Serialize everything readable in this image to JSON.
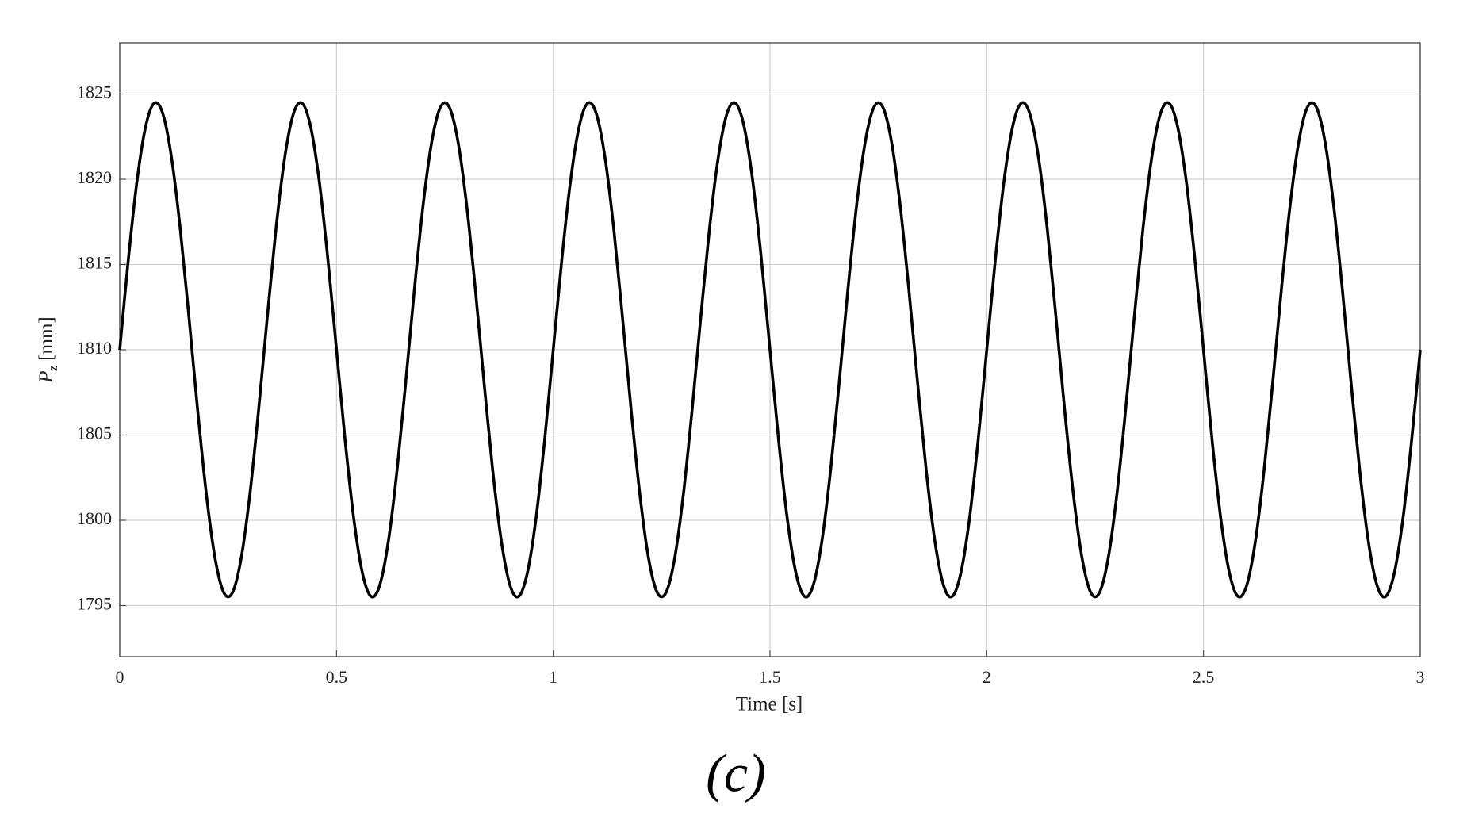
{
  "chart_data": {
    "type": "line",
    "x_label": "Time [s]",
    "y_label": {
      "symbol": "P",
      "subscript": "z",
      "unit": "[mm]"
    },
    "caption": "(c)",
    "xlim": [
      0,
      3
    ],
    "xticks": [
      0,
      0.5,
      1,
      1.5,
      2,
      2.5,
      3
    ],
    "ylim": [
      1792,
      1828
    ],
    "yticks": [
      1795,
      1800,
      1805,
      1810,
      1815,
      1820,
      1825
    ],
    "grid": true,
    "x": [
      0,
      0.02,
      0.04,
      0.06,
      0.08,
      0.1,
      0.12,
      0.14,
      0.16,
      0.18,
      0.2,
      0.22,
      0.24,
      0.26,
      0.28,
      0.3,
      0.32,
      0.34,
      0.36,
      0.38,
      0.4,
      0.42,
      0.44,
      0.46,
      0.48,
      0.5,
      0.52,
      0.54,
      0.56,
      0.58,
      0.6,
      0.62,
      0.64,
      0.66,
      0.68,
      0.7,
      0.72,
      0.74,
      0.76,
      0.78,
      0.8,
      0.82,
      0.84,
      0.86,
      0.88,
      0.9,
      0.92,
      0.94,
      0.96,
      0.98,
      1,
      1.02,
      1.04,
      1.06,
      1.08,
      1.1,
      1.12,
      1.14,
      1.16,
      1.18,
      1.2,
      1.22,
      1.24,
      1.26,
      1.28,
      1.3,
      1.32,
      1.34,
      1.36,
      1.38,
      1.4,
      1.42,
      1.44,
      1.46,
      1.48,
      1.5,
      1.52,
      1.54,
      1.56,
      1.58,
      1.6,
      1.62,
      1.64,
      1.66,
      1.68,
      1.7,
      1.72,
      1.74,
      1.76,
      1.78,
      1.8,
      1.82,
      1.84,
      1.86,
      1.88,
      1.9,
      1.92,
      1.94,
      1.96,
      1.98,
      2,
      2.02,
      2.04,
      2.06,
      2.08,
      2.1,
      2.12,
      2.14,
      2.16,
      2.18,
      2.2,
      2.22,
      2.24,
      2.26,
      2.28,
      2.3,
      2.32,
      2.34,
      2.36,
      2.38,
      2.4,
      2.42,
      2.44,
      2.46,
      2.48,
      2.5,
      2.52,
      2.54,
      2.56,
      2.58,
      2.6,
      2.62,
      2.64,
      2.66,
      2.68,
      2.7,
      2.72,
      2.74,
      2.76,
      2.78,
      2.8,
      2.82,
      2.84,
      2.86,
      2.88,
      2.9,
      2.92,
      2.94,
      2.96,
      2.98,
      3
    ],
    "series": [
      {
        "color": "#000000",
        "values": [
          1810,
          1815.34,
          1819.93,
          1823.12,
          1824.47,
          1823.79,
          1821.17,
          1816.99,
          1811.82,
          1806.39,
          1801.48,
          1797.76,
          1795.76,
          1795.76,
          1797.76,
          1801.48,
          1806.39,
          1811.82,
          1816.99,
          1821.17,
          1823.79,
          1824.47,
          1823.12,
          1819.93,
          1815.34,
          1810,
          1804.66,
          1800.07,
          1796.88,
          1795.53,
          1796.21,
          1798.83,
          1803.01,
          1808.18,
          1813.61,
          1818.52,
          1822.24,
          1824.24,
          1824.24,
          1822.24,
          1818.52,
          1813.61,
          1808.18,
          1803.01,
          1798.83,
          1796.21,
          1795.53,
          1796.88,
          1800.07,
          1804.66,
          1810,
          1815.34,
          1819.93,
          1823.12,
          1824.47,
          1823.79,
          1821.17,
          1816.99,
          1811.82,
          1806.39,
          1801.48,
          1797.76,
          1795.76,
          1795.76,
          1797.76,
          1801.48,
          1806.39,
          1811.82,
          1816.99,
          1821.17,
          1823.79,
          1824.47,
          1823.12,
          1819.93,
          1815.34,
          1810,
          1804.66,
          1800.07,
          1796.88,
          1795.53,
          1796.21,
          1798.83,
          1803.01,
          1808.18,
          1813.61,
          1818.52,
          1822.24,
          1824.24,
          1824.24,
          1822.24,
          1818.52,
          1813.61,
          1808.18,
          1803.01,
          1798.83,
          1796.21,
          1795.53,
          1796.88,
          1800.07,
          1804.66,
          1810,
          1815.34,
          1819.93,
          1823.12,
          1824.47,
          1823.79,
          1821.17,
          1816.99,
          1811.82,
          1806.39,
          1801.48,
          1797.76,
          1795.76,
          1795.76,
          1797.76,
          1801.48,
          1806.39,
          1811.82,
          1816.99,
          1821.17,
          1823.79,
          1824.47,
          1823.12,
          1819.93,
          1815.34,
          1810,
          1804.66,
          1800.07,
          1796.88,
          1795.53,
          1796.21,
          1798.83,
          1803.01,
          1808.18,
          1813.61,
          1818.52,
          1822.24,
          1824.24,
          1824.24,
          1822.24,
          1818.52,
          1813.61,
          1808.18,
          1803.01,
          1798.83,
          1796.21,
          1795.53,
          1796.88,
          1800.07,
          1804.66,
          1810
        ]
      }
    ]
  }
}
